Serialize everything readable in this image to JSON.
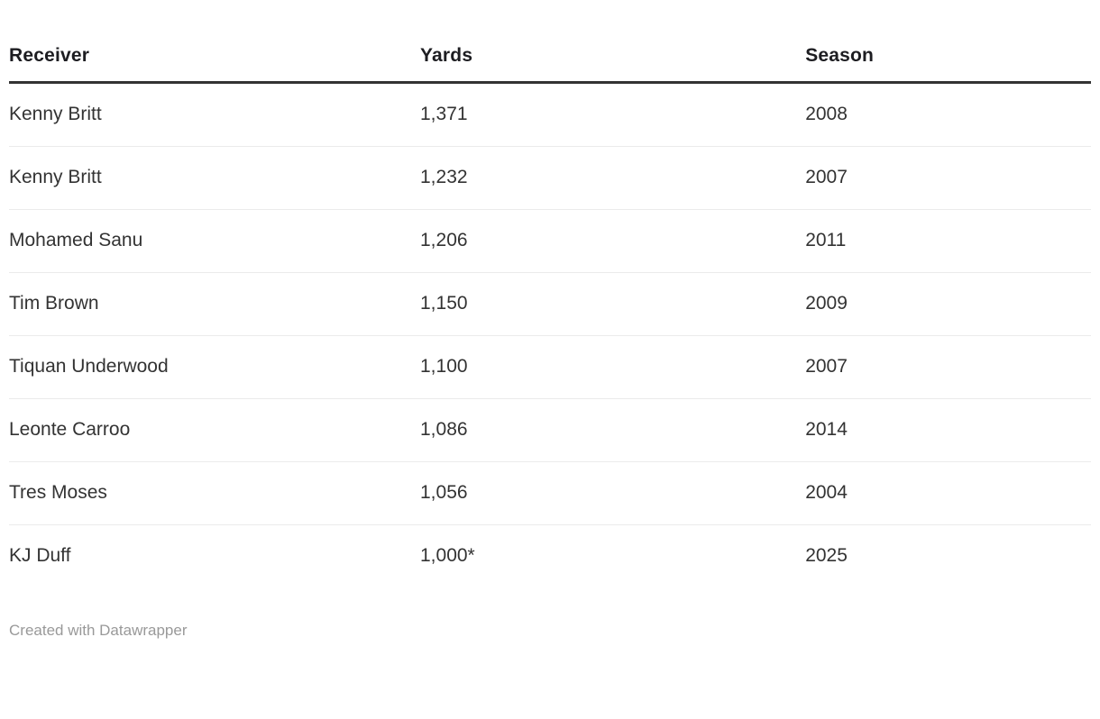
{
  "colors": {
    "header_text": "#1d1d21",
    "body_text": "#333333",
    "header_rule": "#333333",
    "row_divider": "#ebebeb",
    "credit_text": "#999999",
    "background": "#ffffff"
  },
  "table": {
    "columns": [
      {
        "key": "receiver",
        "label": "Receiver"
      },
      {
        "key": "yards",
        "label": "Yards"
      },
      {
        "key": "season",
        "label": "Season"
      }
    ],
    "rows": [
      {
        "receiver": "Kenny Britt",
        "yards": "1,371",
        "season": "2008"
      },
      {
        "receiver": "Kenny Britt",
        "yards": "1,232",
        "season": "2007"
      },
      {
        "receiver": "Mohamed Sanu",
        "yards": "1,206",
        "season": "2011"
      },
      {
        "receiver": "Tim Brown",
        "yards": "1,150",
        "season": "2009"
      },
      {
        "receiver": "Tiquan Underwood",
        "yards": "1,100",
        "season": "2007"
      },
      {
        "receiver": "Leonte Carroo",
        "yards": "1,086",
        "season": "2014"
      },
      {
        "receiver": "Tres Moses",
        "yards": "1,056",
        "season": "2004"
      },
      {
        "receiver": "KJ Duff",
        "yards": "1,000*",
        "season": "2025"
      }
    ]
  },
  "footer": {
    "credit": "Created with Datawrapper"
  },
  "chart_data": {
    "type": "table",
    "title": "",
    "columns": [
      "Receiver",
      "Yards",
      "Season"
    ],
    "categories": [
      "Kenny Britt",
      "Kenny Britt",
      "Mohamed Sanu",
      "Tim Brown",
      "Tiquan Underwood",
      "Leonte Carroo",
      "Tres Moses",
      "KJ Duff"
    ],
    "series": [
      {
        "name": "Yards",
        "values": [
          1371,
          1232,
          1206,
          1150,
          1100,
          1086,
          1056,
          1000
        ]
      },
      {
        "name": "Season",
        "values": [
          2008,
          2007,
          2011,
          2009,
          2007,
          2014,
          2004,
          2025
        ]
      }
    ],
    "annotations": [
      "1,000* (asterisk on KJ Duff yards value)"
    ],
    "legend_position": "none",
    "grid": "horizontal-row-dividers"
  }
}
